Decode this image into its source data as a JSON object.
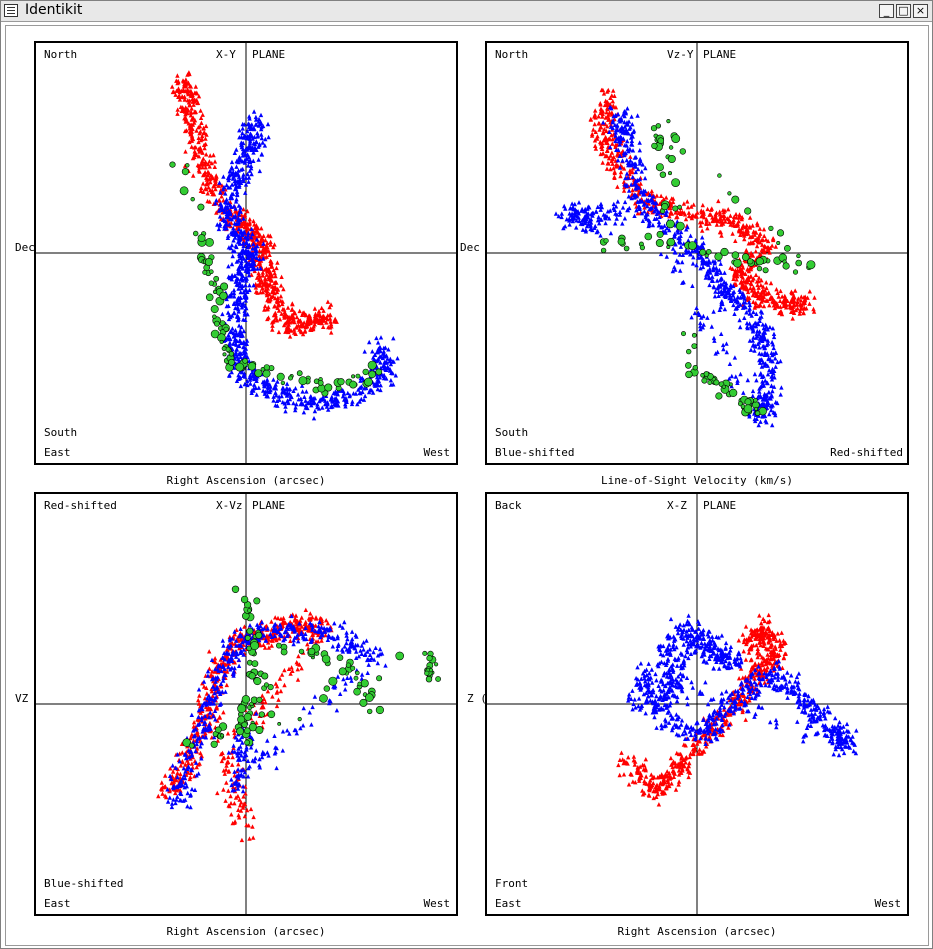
{
  "window": {
    "title": "Identikit",
    "buttons": {
      "minimize": "_",
      "maximize": "□",
      "close": "×"
    }
  },
  "colors": {
    "red": "#ff0000",
    "blue": "#0000ff",
    "green": "#33cc33",
    "outline": "#000000"
  },
  "panels": [
    {
      "plane": "X-Y",
      "plane_suffix": "PLANE",
      "top_left": "North",
      "bottom_left_1": "South",
      "bottom_left_2": "East",
      "bottom_right_2": "West",
      "bottom_right_1": "",
      "x_axis_title": "Right Ascension (arcsec)",
      "y_axis_title": "Dec"
    },
    {
      "plane": "Vz-Y",
      "plane_suffix": "PLANE",
      "top_left": "North",
      "bottom_left_1": "South",
      "bottom_left_2": "Blue-shifted",
      "bottom_right_2": "Red-shifted",
      "bottom_right_1": "",
      "x_axis_title": "Line-of-Sight Velocity (km/s)",
      "y_axis_title": "Dec"
    },
    {
      "plane": "X-Vz",
      "plane_suffix": "PLANE",
      "top_left": "Red-shifted",
      "bottom_left_1": "Blue-shifted",
      "bottom_left_2": "East",
      "bottom_right_2": "West",
      "bottom_right_1": "",
      "x_axis_title": "Right Ascension (arcsec)",
      "y_axis_title": "VZ"
    },
    {
      "plane": "X-Z",
      "plane_suffix": "PLANE",
      "top_left": "Back",
      "bottom_left_1": "Front",
      "bottom_left_2": "East",
      "bottom_right_2": "West",
      "bottom_right_1": "",
      "x_axis_title": "Right Ascension (arcsec)",
      "y_axis_title": "Z ("
    }
  ],
  "chart_data": [
    {
      "type": "scatter",
      "title": "X-Y PLANE",
      "xlabel": "Right Ascension (arcsec)",
      "ylabel": "Dec",
      "grid": false,
      "series": [
        {
          "color": "red",
          "path": [
            [
              -62,
              170
            ],
            [
              -58,
              150
            ],
            [
              -50,
              120
            ],
            [
              -40,
              80
            ],
            [
              -20,
              40
            ],
            [
              0,
              25
            ],
            [
              15,
              10
            ],
            [
              20,
              -20
            ],
            [
              25,
              -40
            ],
            [
              40,
              -70
            ],
            [
              65,
              -70
            ],
            [
              82,
              -60
            ]
          ]
        },
        {
          "color": "blue",
          "path": [
            [
              10,
              135
            ],
            [
              5,
              110
            ],
            [
              -5,
              80
            ],
            [
              -20,
              50
            ],
            [
              -12,
              20
            ],
            [
              5,
              0
            ],
            [
              -5,
              -20
            ],
            [
              -10,
              -50
            ],
            [
              -10,
              -90
            ],
            [
              -5,
              -115
            ],
            [
              20,
              -135
            ],
            [
              60,
              -150
            ],
            [
              100,
              -145
            ],
            [
              140,
              -120
            ],
            [
              135,
              -95
            ]
          ]
        },
        {
          "color": "green",
          "path": [
            [
              -65,
              90
            ],
            [
              -40,
              0
            ],
            [
              -30,
              -40
            ],
            [
              -25,
              -80
            ],
            [
              -15,
              -110
            ],
            [
              40,
              -125
            ],
            [
              90,
              -135
            ],
            [
              130,
              -120
            ]
          ]
        }
      ]
    },
    {
      "type": "scatter",
      "title": "Vz-Y PLANE",
      "xlabel": "Line-of-Sight Velocity (km/s)",
      "ylabel": "Dec",
      "grid": false,
      "series": [
        {
          "color": "red",
          "path": [
            [
              -90,
              160
            ],
            [
              -95,
              120
            ],
            [
              -80,
              90
            ],
            [
              -50,
              50
            ],
            [
              0,
              40
            ],
            [
              40,
              30
            ],
            [
              70,
              10
            ],
            [
              40,
              -20
            ],
            [
              60,
              -40
            ],
            [
              90,
              -50
            ],
            [
              110,
              -50
            ]
          ]
        },
        {
          "color": "blue",
          "path": [
            [
              -80,
              140
            ],
            [
              -70,
              110
            ],
            [
              -60,
              60
            ],
            [
              -20,
              20
            ],
            [
              10,
              -10
            ],
            [
              30,
              -40
            ],
            [
              60,
              -70
            ],
            [
              70,
              -100
            ],
            [
              70,
              -150
            ],
            [
              60,
              -160
            ],
            [
              -50,
              40
            ],
            [
              -130,
              40
            ],
            [
              -100,
              30
            ]
          ]
        },
        {
          "color": "green",
          "path": [
            [
              -90,
              10
            ],
            [
              -20,
              10
            ],
            [
              60,
              -10
            ],
            [
              110,
              -10
            ],
            [
              -40,
              130
            ],
            [
              -30,
              80
            ],
            [
              -10,
              -110
            ],
            [
              20,
              -130
            ],
            [
              50,
              -150
            ],
            [
              65,
              -160
            ]
          ]
        }
      ]
    },
    {
      "type": "scatter",
      "title": "X-Vz PLANE",
      "xlabel": "Right Ascension (arcsec)",
      "ylabel": "VZ",
      "grid": false,
      "series": [
        {
          "color": "red",
          "path": [
            [
              -80,
              -90
            ],
            [
              -60,
              -60
            ],
            [
              -40,
              -20
            ],
            [
              -30,
              30
            ],
            [
              -10,
              60
            ],
            [
              20,
              70
            ],
            [
              50,
              80
            ],
            [
              80,
              75
            ],
            [
              -20,
              -50
            ],
            [
              0,
              -130
            ]
          ]
        },
        {
          "color": "blue",
          "path": [
            [
              -70,
              -100
            ],
            [
              -50,
              -40
            ],
            [
              -30,
              20
            ],
            [
              -10,
              60
            ],
            [
              30,
              75
            ],
            [
              80,
              70
            ],
            [
              130,
              50
            ],
            [
              -10,
              -80
            ],
            [
              0,
              -20
            ]
          ]
        },
        {
          "color": "green",
          "path": [
            [
              0,
              110
            ],
            [
              10,
              60
            ],
            [
              0,
              0
            ],
            [
              -5,
              -40
            ],
            [
              40,
              60
            ],
            [
              100,
              40
            ],
            [
              130,
              0
            ],
            [
              -60,
              -40
            ],
            [
              185,
              50
            ],
            [
              185,
              20
            ]
          ]
        }
      ]
    },
    {
      "type": "scatter",
      "title": "X-Z PLANE",
      "xlabel": "Right Ascension (arcsec)",
      "ylabel": "Z (",
      "grid": false,
      "series": [
        {
          "color": "red",
          "path": [
            [
              -70,
              -60
            ],
            [
              -40,
              -85
            ],
            [
              -20,
              -65
            ],
            [
              10,
              -30
            ],
            [
              40,
              0
            ],
            [
              60,
              30
            ],
            [
              80,
              50
            ],
            [
              70,
              75
            ],
            [
              50,
              60
            ]
          ]
        },
        {
          "color": "blue",
          "path": [
            [
              -15,
              80
            ],
            [
              10,
              60
            ],
            [
              40,
              40
            ],
            [
              -30,
              60
            ],
            [
              -20,
              20
            ],
            [
              -40,
              -10
            ],
            [
              10,
              -30
            ],
            [
              40,
              10
            ],
            [
              80,
              30
            ],
            [
              110,
              0
            ],
            [
              140,
              -30
            ],
            [
              150,
              -40
            ],
            [
              -50,
              30
            ],
            [
              -60,
              0
            ]
          ]
        }
      ]
    }
  ]
}
